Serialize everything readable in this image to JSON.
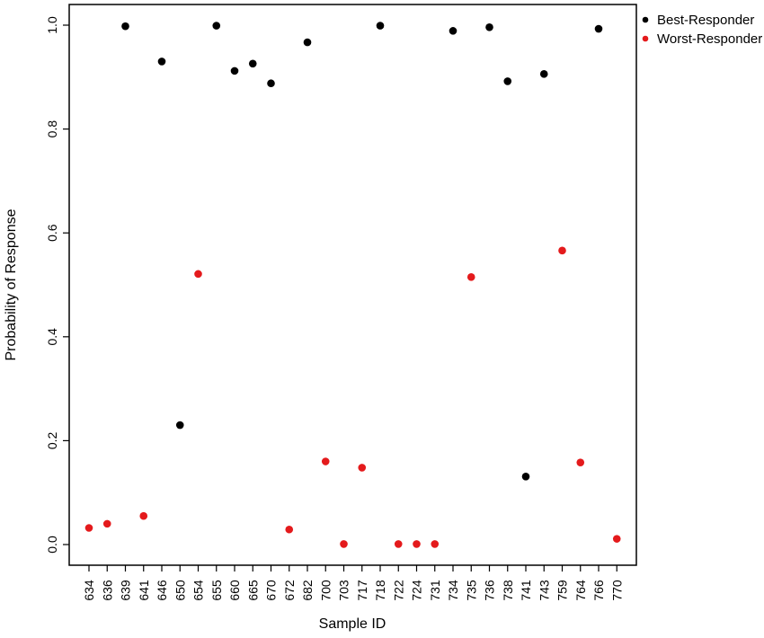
{
  "chart_data": {
    "type": "scatter",
    "title": "",
    "xlabel": "Sample ID",
    "ylabel": "Probability of Response",
    "ylim": [
      0,
      1
    ],
    "yticks": [
      "0.0",
      "0.2",
      "0.4",
      "0.6",
      "0.8",
      "1.0"
    ],
    "categories": [
      "634",
      "636",
      "639",
      "641",
      "646",
      "650",
      "654",
      "655",
      "660",
      "665",
      "670",
      "672",
      "682",
      "700",
      "703",
      "717",
      "718",
      "722",
      "724",
      "731",
      "734",
      "735",
      "736",
      "738",
      "741",
      "743",
      "759",
      "764",
      "766",
      "770"
    ],
    "grid": false,
    "legend_position": "top-right",
    "series": [
      {
        "name": "Best-Responder",
        "color": "#000000",
        "points": [
          {
            "x": "639",
            "y": 0.998
          },
          {
            "x": "646",
            "y": 0.93
          },
          {
            "x": "650",
            "y": 0.23
          },
          {
            "x": "655",
            "y": 0.999
          },
          {
            "x": "660",
            "y": 0.912
          },
          {
            "x": "665",
            "y": 0.926
          },
          {
            "x": "670",
            "y": 0.888
          },
          {
            "x": "682",
            "y": 0.967
          },
          {
            "x": "718",
            "y": 0.999
          },
          {
            "x": "734",
            "y": 0.989
          },
          {
            "x": "736",
            "y": 0.996
          },
          {
            "x": "738",
            "y": 0.892
          },
          {
            "x": "741",
            "y": 0.131
          },
          {
            "x": "743",
            "y": 0.906
          },
          {
            "x": "766",
            "y": 0.993
          }
        ]
      },
      {
        "name": "Worst-Responder",
        "color": "#e41a1c",
        "points": [
          {
            "x": "634",
            "y": 0.032
          },
          {
            "x": "636",
            "y": 0.04
          },
          {
            "x": "641",
            "y": 0.055
          },
          {
            "x": "654",
            "y": 0.521
          },
          {
            "x": "672",
            "y": 0.029
          },
          {
            "x": "700",
            "y": 0.16
          },
          {
            "x": "703",
            "y": 0.001
          },
          {
            "x": "717",
            "y": 0.148
          },
          {
            "x": "722",
            "y": 0.001
          },
          {
            "x": "724",
            "y": 0.001
          },
          {
            "x": "731",
            "y": 0.001
          },
          {
            "x": "735",
            "y": 0.515
          },
          {
            "x": "759",
            "y": 0.566
          },
          {
            "x": "764",
            "y": 0.158
          },
          {
            "x": "770",
            "y": 0.011
          }
        ]
      }
    ]
  }
}
